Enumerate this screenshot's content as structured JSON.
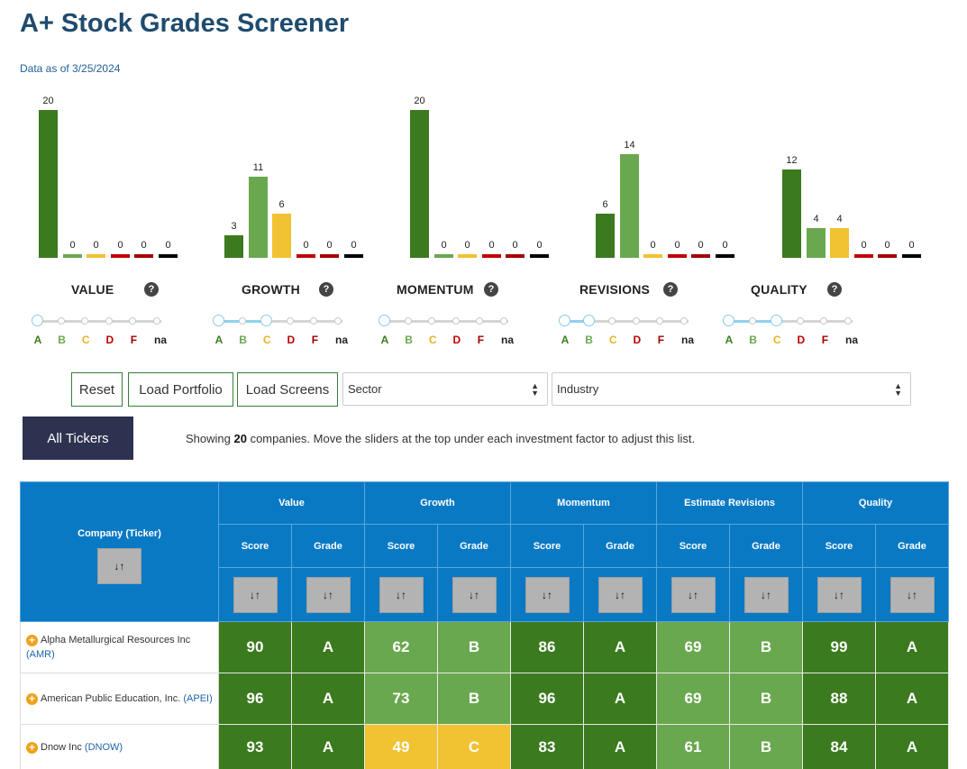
{
  "page": {
    "title": "A+ Stock Grades Screener",
    "data_as_of": "Data as of 3/25/2024"
  },
  "colors": {
    "A": "#3b7a1e",
    "B": "#6aa84f",
    "C": "#f1c232",
    "D": "#c00000",
    "F": "#a50000",
    "na": "#000000"
  },
  "factors": [
    {
      "name": "VALUE",
      "counts": [
        20,
        0,
        0,
        0,
        0,
        0
      ]
    },
    {
      "name": "GROWTH",
      "counts": [
        3,
        11,
        6,
        0,
        0,
        0
      ]
    },
    {
      "name": "MOMENTUM",
      "counts": [
        20,
        0,
        0,
        0,
        0,
        0
      ]
    },
    {
      "name": "REVISIONS",
      "counts": [
        6,
        14,
        0,
        0,
        0,
        0
      ]
    },
    {
      "name": "QUALITY",
      "counts": [
        12,
        4,
        4,
        0,
        0,
        0
      ]
    }
  ],
  "grade_labels": [
    "A",
    "B",
    "C",
    "D",
    "F",
    "na"
  ],
  "help_icon": "?",
  "controls": {
    "reset": "Reset",
    "load_portfolio": "Load Portfolio",
    "load_screens": "Load Screens",
    "sector": "Sector",
    "industry": "Industry",
    "all_tickers": "All Tickers",
    "showing_pre": "Showing ",
    "showing_count": "20",
    "showing_post": " companies. Move the sliders at the top under each investment factor to adjust this list."
  },
  "table": {
    "company_header": "Company (Ticker)",
    "groups": [
      "Value",
      "Growth",
      "Momentum",
      "Estimate Revisions",
      "Quality"
    ],
    "score_label": "Score",
    "grade_label": "Grade",
    "sort_glyph": "↓↑",
    "rows": [
      {
        "name": "Alpha Metallurgical Resources Inc",
        "ticker": "(AMR)",
        "cells": [
          [
            "90",
            "A"
          ],
          [
            "62",
            "B"
          ],
          [
            "86",
            "A"
          ],
          [
            "69",
            "B"
          ],
          [
            "99",
            "A"
          ]
        ]
      },
      {
        "name": "American Public Education, Inc.",
        "ticker": "(APEI)",
        "cells": [
          [
            "96",
            "A"
          ],
          [
            "73",
            "B"
          ],
          [
            "96",
            "A"
          ],
          [
            "69",
            "B"
          ],
          [
            "88",
            "A"
          ]
        ]
      },
      {
        "name": "Dnow Inc",
        "ticker": "(DNOW)",
        "cells": [
          [
            "93",
            "A"
          ],
          [
            "49",
            "C"
          ],
          [
            "83",
            "A"
          ],
          [
            "61",
            "B"
          ],
          [
            "84",
            "A"
          ]
        ]
      }
    ]
  }
}
